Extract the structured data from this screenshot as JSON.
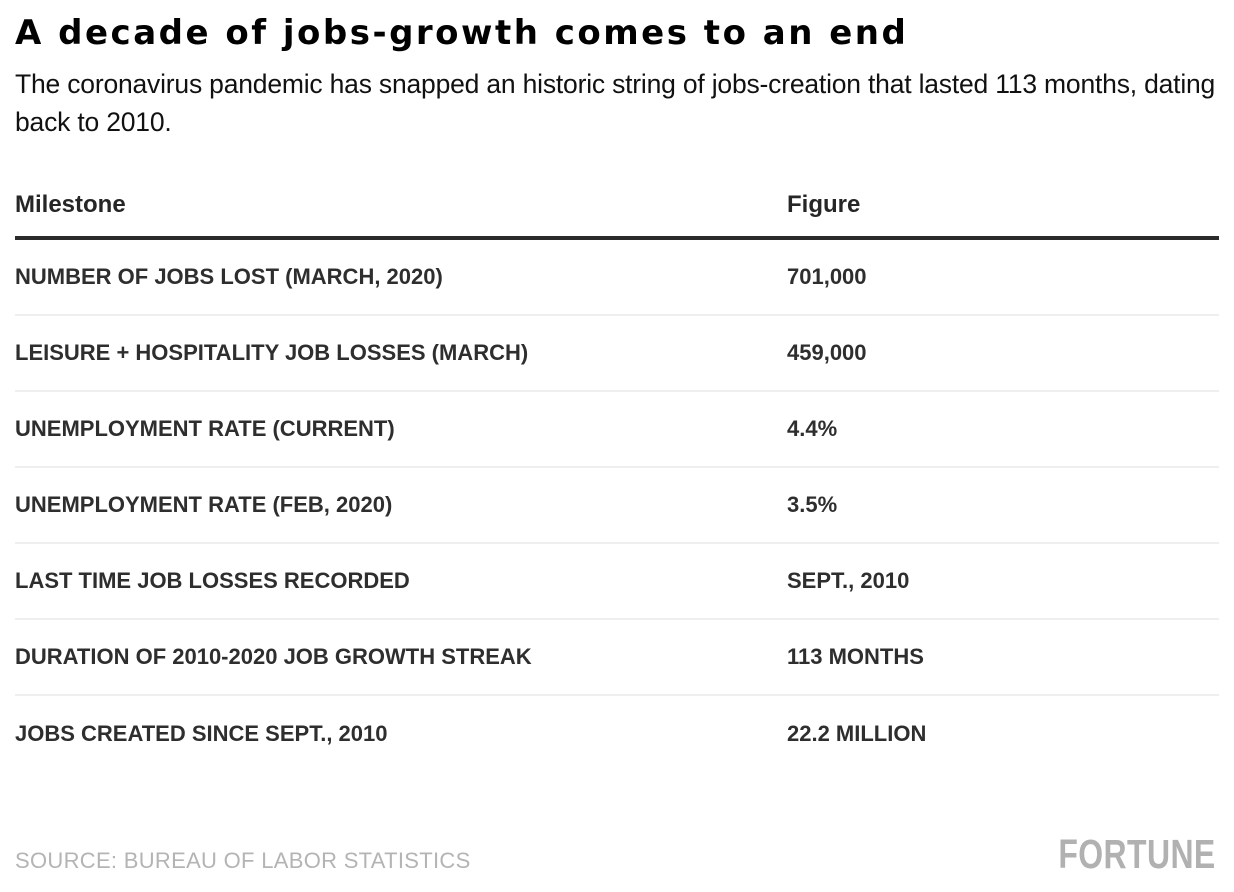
{
  "title": "A decade of jobs-growth comes to an end",
  "subtitle": "The coronavirus pandemic has snapped an historic string of jobs-creation that lasted 113 months, dating back to 2010.",
  "table": {
    "columns": [
      "Milestone",
      "Figure"
    ],
    "rows": [
      {
        "milestone": "NUMBER OF JOBS LOST (MARCH, 2020)",
        "figure": "701,000"
      },
      {
        "milestone": "LEISURE + HOSPITALITY JOB LOSSES (MARCH)",
        "figure": "459,000"
      },
      {
        "milestone": "UNEMPLOYMENT RATE (CURRENT)",
        "figure": "4.4%"
      },
      {
        "milestone": "UNEMPLOYMENT RATE (FEB, 2020)",
        "figure": "3.5%"
      },
      {
        "milestone": "LAST TIME JOB LOSSES RECORDED",
        "figure": "SEPT., 2010"
      },
      {
        "milestone": "DURATION OF 2010-2020 JOB GROWTH STREAK",
        "figure": "113 MONTHS"
      },
      {
        "milestone": "JOBS CREATED SINCE SEPT., 2010",
        "figure": "22.2 MILLION"
      }
    ]
  },
  "footer": {
    "source": "SOURCE: BUREAU OF LABOR STATISTICS",
    "brand": "FORTUNE"
  },
  "colors": {
    "background": "#ffffff",
    "title_text": "#000000",
    "body_text": "#2e2e2e",
    "header_rule": "#2b2b2b",
    "row_separator": "#efefef",
    "muted_gray": "#b4b4b4"
  },
  "chart_data": {
    "type": "table",
    "title": "A decade of jobs-growth comes to an end",
    "subtitle": "The coronavirus pandemic has snapped an historic string of jobs-creation that lasted 113 months, dating back to 2010.",
    "columns": [
      "Milestone",
      "Figure"
    ],
    "rows": [
      [
        "NUMBER OF JOBS LOST (MARCH, 2020)",
        "701,000"
      ],
      [
        "LEISURE + HOSPITALITY JOB LOSSES (MARCH)",
        "459,000"
      ],
      [
        "UNEMPLOYMENT RATE (CURRENT)",
        "4.4%"
      ],
      [
        "UNEMPLOYMENT RATE (FEB, 2020)",
        "3.5%"
      ],
      [
        "LAST TIME JOB LOSSES RECORDED",
        "SEPT., 2010"
      ],
      [
        "DURATION OF 2010-2020 JOB GROWTH STREAK",
        "113 MONTHS"
      ],
      [
        "JOBS CREATED SINCE SEPT., 2010",
        "22.2 MILLION"
      ]
    ],
    "source": "SOURCE: BUREAU OF LABOR STATISTICS",
    "brand": "FORTUNE",
    "layout": {
      "grid": "off",
      "header_rule": "thick-dark",
      "row_separators": "light-gray"
    }
  }
}
